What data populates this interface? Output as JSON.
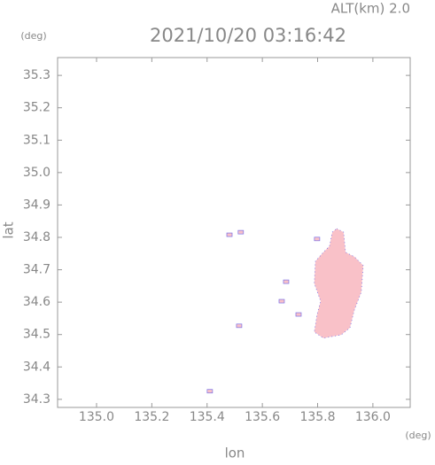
{
  "chart_data": {
    "type": "map",
    "altitude_label": "ALT(km) 2.0",
    "title": "2021/10/20 03:16:42",
    "y_unit": "(deg)",
    "x_unit": "(deg)",
    "y_label": "lat",
    "x_label": "lon",
    "xlim": [
      134.859,
      136.135
    ],
    "ylim": [
      34.275,
      35.355
    ],
    "xticks": [
      {
        "value": 135,
        "label": "135.0"
      },
      135.2,
      135.4,
      135.6,
      135.8,
      {
        "value": 136,
        "label": "136.0"
      }
    ],
    "yticks": [
      34.3,
      34.4,
      34.5,
      34.6,
      34.7,
      34.8,
      34.9,
      {
        "value": 35,
        "label": "35.0"
      },
      35.1,
      35.2,
      35.3
    ],
    "color": "#f9c1c8",
    "edge_color": "#7a70e8",
    "regions": [
      {
        "lon": [
          135.869,
          135.894,
          135.901,
          135.933,
          135.965,
          135.958,
          135.933,
          135.917,
          135.885,
          135.821,
          135.788,
          135.798,
          135.811,
          135.788,
          135.792,
          135.821,
          135.843,
          135.853
        ],
        "lat": [
          34.827,
          34.816,
          34.754,
          34.74,
          34.713,
          34.631,
          34.576,
          34.521,
          34.499,
          34.489,
          34.508,
          34.562,
          34.603,
          34.658,
          34.726,
          34.754,
          34.773,
          34.816
        ]
      }
    ],
    "cells": {
      "lon": [
        135.481,
        135.522,
        135.798,
        135.686,
        135.67,
        135.731,
        135.516,
        135.41
      ],
      "lat": [
        34.808,
        34.816,
        34.795,
        34.663,
        34.603,
        34.562,
        34.527,
        34.325
      ]
    }
  }
}
